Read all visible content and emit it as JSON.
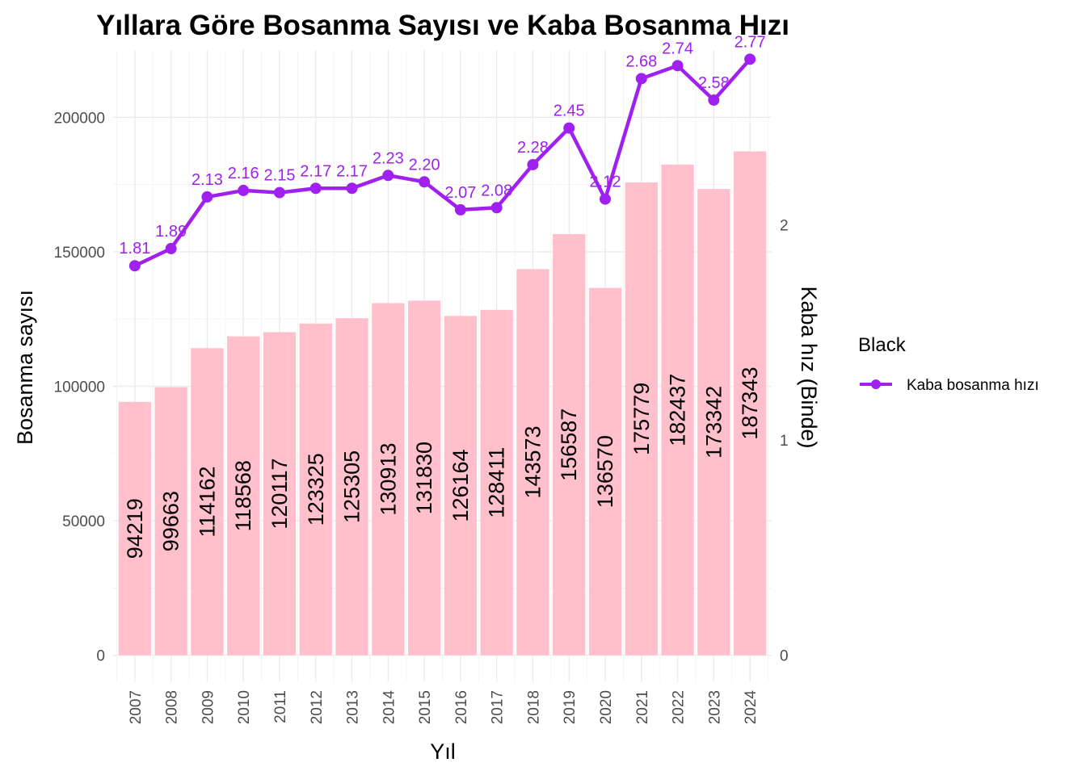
{
  "chart_data": {
    "type": "bar",
    "title": "Yıllara Göre Bosanma Sayısı ve Kaba Bosanma Hızı",
    "xlabel": "Yıl",
    "ylabel": "Bosanma sayısı",
    "y2label": "Kaba hız (Binde)",
    "categories": [
      "2007",
      "2008",
      "2009",
      "2010",
      "2011",
      "2012",
      "2013",
      "2014",
      "2015",
      "2016",
      "2017",
      "2018",
      "2019",
      "2020",
      "2021",
      "2022",
      "2023",
      "2024"
    ],
    "bars": {
      "values": [
        94219,
        99663,
        114162,
        118568,
        120117,
        123325,
        125305,
        130913,
        131830,
        126164,
        128411,
        143573,
        156587,
        136570,
        175779,
        182437,
        173342,
        187343
      ],
      "labels": [
        "94219",
        "99663",
        "114162",
        "118568",
        "120117",
        "123325",
        "125305",
        "130913",
        "131830",
        "126164",
        "128411",
        "143573",
        "156587",
        "136570",
        "175779",
        "182437",
        "173342",
        "187343"
      ],
      "color": "#ffc0cb"
    },
    "line": {
      "name": "Kaba bosanma hızı",
      "values": [
        1.81,
        1.89,
        2.13,
        2.16,
        2.15,
        2.17,
        2.17,
        2.23,
        2.2,
        2.07,
        2.08,
        2.28,
        2.45,
        2.12,
        2.68,
        2.74,
        2.58,
        2.77
      ],
      "labels": [
        "1.81",
        "1.89",
        "2.13",
        "2.16",
        "2.15",
        "2.17",
        "2.17",
        "2.23",
        "2.20",
        "2.07",
        "2.08",
        "2.28",
        "2.45",
        "2.12",
        "2.68",
        "2.74",
        "2.58",
        "2.77"
      ],
      "color": "#a020f0"
    },
    "y_ticks": [
      "0",
      "50000",
      "100000",
      "150000",
      "200000"
    ],
    "y_tick_values": [
      0,
      50000,
      100000,
      150000,
      200000
    ],
    "y2_ticks": [
      "0",
      "1",
      "2"
    ],
    "y2_tick_values": [
      0,
      1,
      2
    ],
    "ylim": [
      -10000,
      225000
    ],
    "y2_scale": 80000,
    "grid": true,
    "legend": {
      "title": "Black",
      "position": "right",
      "entries": [
        "Kaba bosanma hızı"
      ]
    }
  }
}
